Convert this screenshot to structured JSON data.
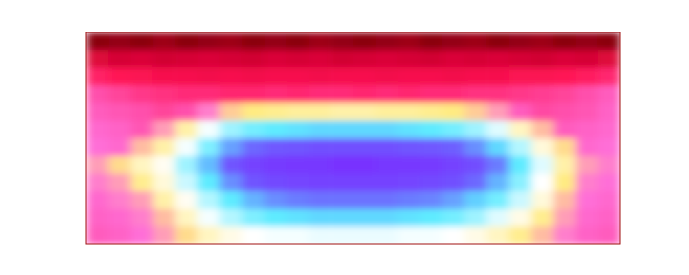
{
  "chart_data": {
    "type": "heatmap",
    "color_range": [
      0,
      1
    ],
    "tick_labels": false,
    "cells": [
      [
        0.97,
        0.96,
        0.97,
        0.95,
        0.97,
        0.96,
        0.95,
        0.97,
        0.96,
        0.97,
        0.95,
        0.96,
        0.97,
        0.96,
        0.95,
        0.97,
        0.96,
        0.95,
        0.97,
        0.96,
        0.95,
        0.97,
        0.96,
        0.97
      ],
      [
        0.86,
        0.88,
        0.87,
        0.89,
        0.88,
        0.87,
        0.88,
        0.89,
        0.87,
        0.88,
        0.87,
        0.89,
        0.88,
        0.87,
        0.88,
        0.89,
        0.87,
        0.88,
        0.87,
        0.88,
        0.89,
        0.87,
        0.88,
        0.86
      ],
      [
        0.76,
        0.78,
        0.79,
        0.8,
        0.8,
        0.81,
        0.8,
        0.81,
        0.8,
        0.8,
        0.81,
        0.8,
        0.8,
        0.81,
        0.8,
        0.8,
        0.81,
        0.8,
        0.8,
        0.79,
        0.79,
        0.78,
        0.77,
        0.75
      ],
      [
        0.68,
        0.7,
        0.72,
        0.73,
        0.74,
        0.74,
        0.75,
        0.75,
        0.74,
        0.75,
        0.74,
        0.74,
        0.75,
        0.74,
        0.75,
        0.74,
        0.74,
        0.73,
        0.73,
        0.72,
        0.71,
        0.7,
        0.68,
        0.66
      ],
      [
        0.66,
        0.67,
        0.68,
        0.7,
        0.68,
        0.62,
        0.57,
        0.55,
        0.54,
        0.53,
        0.53,
        0.52,
        0.52,
        0.53,
        0.53,
        0.54,
        0.55,
        0.57,
        0.6,
        0.66,
        0.69,
        0.68,
        0.67,
        0.65
      ],
      [
        0.64,
        0.65,
        0.67,
        0.6,
        0.52,
        0.44,
        0.36,
        0.32,
        0.3,
        0.29,
        0.28,
        0.28,
        0.28,
        0.28,
        0.29,
        0.3,
        0.32,
        0.36,
        0.42,
        0.5,
        0.58,
        0.66,
        0.65,
        0.64
      ],
      [
        0.63,
        0.64,
        0.58,
        0.52,
        0.44,
        0.33,
        0.22,
        0.16,
        0.13,
        0.12,
        0.11,
        0.11,
        0.11,
        0.11,
        0.12,
        0.13,
        0.15,
        0.2,
        0.28,
        0.38,
        0.48,
        0.56,
        0.64,
        0.63
      ],
      [
        0.6,
        0.56,
        0.5,
        0.46,
        0.36,
        0.25,
        0.12,
        0.07,
        0.05,
        0.04,
        0.04,
        0.03,
        0.03,
        0.04,
        0.04,
        0.05,
        0.07,
        0.1,
        0.18,
        0.3,
        0.42,
        0.52,
        0.6,
        0.62
      ],
      [
        0.62,
        0.6,
        0.54,
        0.48,
        0.4,
        0.3,
        0.2,
        0.12,
        0.09,
        0.08,
        0.07,
        0.07,
        0.07,
        0.07,
        0.08,
        0.09,
        0.11,
        0.16,
        0.24,
        0.34,
        0.45,
        0.55,
        0.62,
        0.63
      ],
      [
        0.64,
        0.62,
        0.6,
        0.52,
        0.46,
        0.38,
        0.3,
        0.24,
        0.2,
        0.18,
        0.17,
        0.17,
        0.17,
        0.17,
        0.18,
        0.19,
        0.22,
        0.27,
        0.32,
        0.4,
        0.48,
        0.58,
        0.63,
        0.64
      ],
      [
        0.65,
        0.64,
        0.62,
        0.58,
        0.5,
        0.44,
        0.38,
        0.33,
        0.3,
        0.29,
        0.28,
        0.28,
        0.28,
        0.28,
        0.29,
        0.3,
        0.32,
        0.36,
        0.42,
        0.47,
        0.54,
        0.6,
        0.64,
        0.65
      ],
      [
        0.66,
        0.65,
        0.63,
        0.6,
        0.56,
        0.5,
        0.47,
        0.45,
        0.44,
        0.44,
        0.43,
        0.43,
        0.43,
        0.43,
        0.44,
        0.44,
        0.45,
        0.47,
        0.5,
        0.54,
        0.58,
        0.62,
        0.65,
        0.66
      ]
    ]
  }
}
